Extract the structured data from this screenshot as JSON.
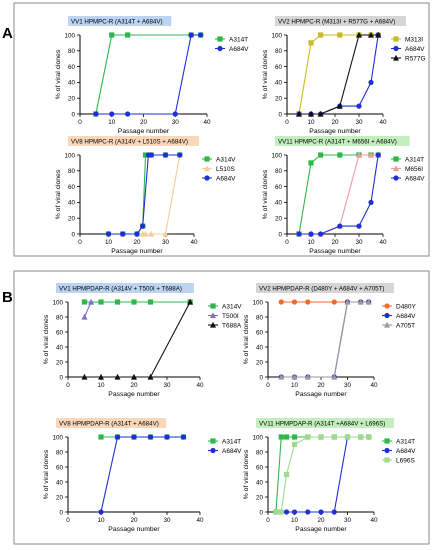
{
  "figure": {
    "panel_labels": [
      "A",
      "B"
    ],
    "colors": {
      "green": "#2db84a",
      "blue": "#1f2fd6",
      "olive": "#c9bb22",
      "black": "#111111",
      "salmon": "#f09a9a",
      "purple": "#7b6fd0",
      "lightblue": "#a9b8ea",
      "peach": "#f4cd9a",
      "orange": "#f06a2a",
      "gray": "#9a9a9a",
      "lightgreen": "#9fdb8e",
      "title_blue": "#bcd3f2",
      "title_gray": "#d6d6d6",
      "title_orange": "#fad7b8",
      "title_green": "#c3eebe"
    }
  },
  "chart_data": [
    {
      "panel": "A",
      "type": "line",
      "title": "VV1 HPMPC-R  (A314T + A684V)",
      "title_color": "title_blue",
      "xlabel": "Passage number",
      "ylabel": "% of viral clones",
      "xlim": [
        0,
        40
      ],
      "ylim": [
        0,
        100
      ],
      "xticks": [
        "0",
        "10",
        "20",
        "30",
        "40"
      ],
      "yticks": [
        "0",
        "20",
        "40",
        "60",
        "80",
        "100"
      ],
      "series": [
        {
          "name": "A314T",
          "color": "green",
          "marker": "square",
          "x": [
            5,
            10,
            15,
            35,
            38
          ],
          "y": [
            0,
            100,
            100,
            100,
            100
          ]
        },
        {
          "name": "A684V",
          "color": "blue",
          "marker": "circle",
          "x": [
            5,
            10,
            15,
            30,
            35,
            38
          ],
          "y": [
            0,
            0,
            0,
            0,
            100,
            100
          ]
        }
      ]
    },
    {
      "panel": "A",
      "type": "line",
      "title": "VV2 HPMPC-R  (M313I + R577G + A684V)",
      "title_color": "title_gray",
      "xlabel": "Passage number",
      "ylabel": "% of viral clones",
      "xlim": [
        0,
        40
      ],
      "ylim": [
        0,
        100
      ],
      "xticks": [
        "0",
        "10",
        "20",
        "30",
        "40"
      ],
      "yticks": [
        "0",
        "20",
        "40",
        "60",
        "80",
        "100"
      ],
      "series": [
        {
          "name": "M313I",
          "color": "olive",
          "marker": "square",
          "x": [
            5,
            10,
            14,
            22,
            30,
            35,
            38
          ],
          "y": [
            0,
            90,
            100,
            100,
            100,
            100,
            100
          ]
        },
        {
          "name": "A684V",
          "color": "blue",
          "marker": "circle",
          "x": [
            5,
            10,
            14,
            22,
            30,
            35,
            38
          ],
          "y": [
            0,
            0,
            0,
            10,
            10,
            40,
            100
          ]
        },
        {
          "name": "R577G",
          "color": "black",
          "marker": "triangle",
          "x": [
            5,
            10,
            14,
            22,
            30,
            35,
            38
          ],
          "y": [
            0,
            0,
            0,
            10,
            100,
            100,
            100
          ]
        }
      ]
    },
    {
      "panel": "A",
      "type": "line",
      "title": "VV8 HPMPC-R  (A314V + L510S + A684V)",
      "title_color": "title_orange",
      "xlabel": "Passage number",
      "ylabel": "% of viral clones",
      "xlim": [
        0,
        40
      ],
      "ylim": [
        0,
        100
      ],
      "xticks": [
        "0",
        "10",
        "20",
        "30",
        "40"
      ],
      "yticks": [
        "0",
        "20",
        "40",
        "60",
        "80",
        "100"
      ],
      "series": [
        {
          "name": "A314V",
          "color": "green",
          "marker": "square",
          "x": [
            10,
            15,
            20,
            22,
            23,
            25,
            30,
            35
          ],
          "y": [
            0,
            0,
            0,
            10,
            100,
            100,
            100,
            100
          ]
        },
        {
          "name": "L510S",
          "color": "peach",
          "marker": "triangle",
          "x": [
            10,
            15,
            20,
            22,
            23,
            25,
            30,
            35
          ],
          "y": [
            0,
            0,
            0,
            0,
            0,
            0,
            0,
            100
          ]
        },
        {
          "name": "A684V",
          "color": "blue",
          "marker": "circle",
          "x": [
            10,
            15,
            20,
            22,
            24,
            25,
            30,
            35
          ],
          "y": [
            0,
            0,
            0,
            10,
            100,
            100,
            100,
            100
          ]
        }
      ]
    },
    {
      "panel": "A",
      "type": "line",
      "title": "VV11 HPMPC-R  (A314T + M656I + A684V)",
      "title_color": "title_green",
      "xlabel": "Passage number",
      "ylabel": "% of viral clones",
      "xlim": [
        0,
        40
      ],
      "ylim": [
        0,
        100
      ],
      "xticks": [
        "0",
        "10",
        "20",
        "30",
        "40"
      ],
      "yticks": [
        "0",
        "20",
        "40",
        "60",
        "80",
        "100"
      ],
      "series": [
        {
          "name": "A314T",
          "color": "green",
          "marker": "square",
          "x": [
            5,
            10,
            14,
            22,
            30,
            35,
            38
          ],
          "y": [
            0,
            90,
            100,
            100,
            100,
            100,
            100
          ]
        },
        {
          "name": "M656I",
          "color": "salmon",
          "marker": "triangle",
          "x": [
            5,
            10,
            14,
            22,
            30,
            35,
            38
          ],
          "y": [
            0,
            0,
            0,
            10,
            100,
            100,
            100
          ]
        },
        {
          "name": "A684V",
          "color": "blue",
          "marker": "circle",
          "x": [
            5,
            10,
            14,
            22,
            30,
            35,
            38
          ],
          "y": [
            0,
            0,
            0,
            10,
            10,
            40,
            100
          ]
        }
      ]
    },
    {
      "panel": "B",
      "type": "line",
      "title": "VV1 HPMPDAP-R  (A314V + T500I + T688A)",
      "title_color": "title_blue",
      "xlabel": "Passage number",
      "ylabel": "% of viral clones",
      "xlim": [
        0,
        40
      ],
      "ylim": [
        0,
        100
      ],
      "xticks": [
        "0",
        "10",
        "20",
        "30",
        "40"
      ],
      "yticks": [
        "0",
        "20",
        "40",
        "60",
        "80",
        "100"
      ],
      "series": [
        {
          "name": "A314V",
          "color": "green",
          "marker": "square",
          "x": [
            5,
            10,
            15,
            20,
            25,
            37
          ],
          "y": [
            100,
            100,
            100,
            100,
            100,
            100
          ]
        },
        {
          "name": "T500I",
          "color": "purple",
          "marker": "triangle",
          "x": [
            5,
            7
          ],
          "y": [
            80,
            100
          ]
        },
        {
          "name": "T688A",
          "color": "black",
          "marker": "triangle",
          "x": [
            5,
            10,
            15,
            20,
            25,
            37
          ],
          "y": [
            0,
            0,
            0,
            0,
            0,
            100
          ]
        }
      ]
    },
    {
      "panel": "B",
      "type": "line",
      "title": "VV2 HPMPDAP-R  (D480Y + A684V + A705T)",
      "title_color": "title_gray",
      "xlabel": "Passage number",
      "ylabel": "% of viral clones",
      "xlim": [
        0,
        40
      ],
      "ylim": [
        0,
        100
      ],
      "xticks": [
        "0",
        "10",
        "20",
        "30",
        "40"
      ],
      "yticks": [
        "0",
        "20",
        "40",
        "60",
        "80",
        "100"
      ],
      "series": [
        {
          "name": "D480Y",
          "color": "orange",
          "marker": "circle",
          "x": [
            5,
            10,
            15,
            25,
            30,
            35,
            38
          ],
          "y": [
            100,
            100,
            100,
            100,
            100,
            100,
            100
          ]
        },
        {
          "name": "A684V",
          "color": "blue",
          "marker": "circle",
          "x": [
            5,
            10,
            15,
            25,
            30,
            35,
            38
          ],
          "y": [
            0,
            0,
            0,
            0,
            100,
            100,
            100
          ]
        },
        {
          "name": "A705T",
          "color": "gray",
          "marker": "triangle",
          "x": [
            5,
            10,
            15,
            25,
            30,
            35,
            38
          ],
          "y": [
            0,
            0,
            0,
            0,
            100,
            100,
            100
          ]
        }
      ]
    },
    {
      "panel": "B",
      "type": "line",
      "title": "VV8 HPMPDAP-R  (A314T + A684V)",
      "title_color": "title_orange",
      "xlabel": "Passage number",
      "ylabel": "% of viral clones",
      "xlim": [
        0,
        40
      ],
      "ylim": [
        0,
        100
      ],
      "xticks": [
        "0",
        "10",
        "20",
        "30",
        "40"
      ],
      "yticks": [
        "0",
        "20",
        "40",
        "60",
        "80",
        "100"
      ],
      "series": [
        {
          "name": "A314T",
          "color": "green",
          "marker": "square",
          "x": [
            10,
            15,
            20,
            25,
            30,
            35
          ],
          "y": [
            100,
            100,
            100,
            100,
            100,
            100
          ]
        },
        {
          "name": "A684V",
          "color": "blue",
          "marker": "circle",
          "x": [
            10,
            15,
            20,
            25,
            30,
            35
          ],
          "y": [
            0,
            100,
            100,
            100,
            100,
            100
          ]
        }
      ]
    },
    {
      "panel": "B",
      "type": "line",
      "title": "VV11 HPMPDAP-R  (A314T +A684V + L696S)",
      "title_color": "title_green",
      "xlabel": "Passage number",
      "ylabel": "% of viral clones",
      "xlim": [
        0,
        40
      ],
      "ylim": [
        0,
        100
      ],
      "xticks": [
        "0",
        "10",
        "20",
        "30",
        "40"
      ],
      "yticks": [
        "0",
        "20",
        "40",
        "60",
        "80",
        "100"
      ],
      "series": [
        {
          "name": "A314T",
          "color": "green",
          "marker": "square",
          "x": [
            3,
            5,
            7,
            10,
            15,
            20,
            25,
            30,
            35,
            38
          ],
          "y": [
            0,
            100,
            100,
            100,
            100,
            100,
            100,
            100,
            100,
            100
          ]
        },
        {
          "name": "A684V",
          "color": "blue",
          "marker": "circle",
          "x": [
            3,
            5,
            7,
            10,
            15,
            20,
            25,
            30,
            35,
            38
          ],
          "y": [
            0,
            0,
            0,
            0,
            0,
            0,
            0,
            100,
            100,
            100
          ]
        },
        {
          "name": "L696S",
          "color": "lightgreen",
          "marker": "square",
          "x": [
            3,
            5,
            7,
            10,
            15,
            20,
            25,
            30,
            35,
            38
          ],
          "y": [
            0,
            0,
            50,
            90,
            100,
            100,
            100,
            100,
            100,
            100
          ]
        }
      ]
    }
  ]
}
